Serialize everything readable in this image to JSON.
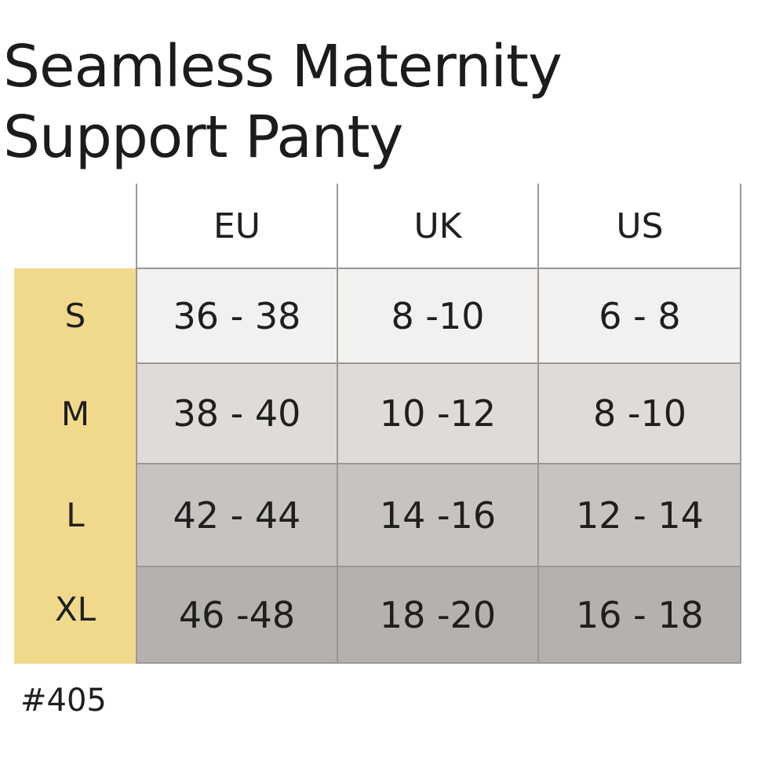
{
  "title": {
    "line1": "Seamless Maternity",
    "line2": "Support Panty"
  },
  "table": {
    "columns": [
      "EU",
      "UK",
      "US"
    ],
    "rows": [
      {
        "size": "S",
        "values": [
          "36 - 38",
          "8 -10",
          "6 - 8"
        ]
      },
      {
        "size": "M",
        "values": [
          "38 - 40",
          "10 -12",
          "8 -10"
        ]
      },
      {
        "size": "L",
        "values": [
          "42 - 44",
          "14 -16",
          "12 - 14"
        ]
      },
      {
        "size": "XL",
        "values": [
          "46 -48",
          "18 -20",
          "16 - 18"
        ]
      }
    ]
  },
  "product_code": "#405",
  "colors": {
    "size_column": "#f1d98b",
    "row_s": "#f3f1ef",
    "row_m": "#dfdbd8",
    "row_l": "#c6c3c0",
    "row_xl": "#b4b1ae",
    "grid_line": "#9a9794"
  }
}
